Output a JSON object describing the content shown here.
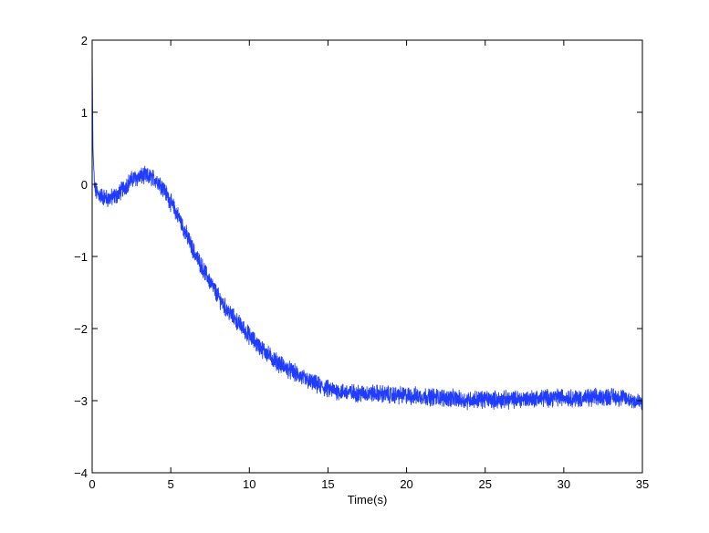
{
  "chart_data": {
    "type": "line",
    "title": "",
    "xlabel": "Time(s)",
    "ylabel": "",
    "xlim": [
      0,
      35
    ],
    "ylim": [
      -4,
      2
    ],
    "xticks": [
      0,
      5,
      10,
      15,
      20,
      25,
      30,
      35
    ],
    "yticks": [
      -4,
      -3,
      -2,
      -1,
      0,
      1,
      2
    ],
    "grid": false,
    "legend": "none",
    "colors": {
      "series": "#1f3cff",
      "axes": "#000000",
      "background": "#ffffff"
    },
    "series": [
      {
        "noisy": true,
        "x": [
          0,
          0.05,
          0.15,
          0.3,
          0.5,
          0.8,
          1.0,
          1.3,
          1.6,
          2.0,
          2.3,
          2.6,
          3.0,
          3.3,
          3.6,
          4.0,
          4.3,
          4.6,
          5.0,
          5.5,
          6.0,
          6.5,
          7.0,
          7.5,
          8.0,
          8.5,
          9.0,
          9.5,
          10.0,
          10.5,
          11.0,
          11.5,
          12.0,
          12.5,
          13.0,
          13.5,
          14.0,
          14.5,
          15.0,
          15.5,
          16.0,
          17.0,
          18.0,
          19.0,
          20.0,
          21.0,
          22.0,
          23.0,
          23.8,
          24.0,
          25.0,
          26.0,
          27.0,
          28.0,
          29.0,
          30.0,
          31.0,
          32.0,
          33.0,
          34.0,
          35.0
        ],
        "y": [
          1.85,
          0.5,
          -0.05,
          -0.12,
          -0.15,
          -0.18,
          -0.2,
          -0.18,
          -0.15,
          -0.05,
          0.02,
          0.08,
          0.1,
          0.12,
          0.1,
          0.08,
          0.02,
          -0.08,
          -0.25,
          -0.45,
          -0.7,
          -0.95,
          -1.15,
          -1.35,
          -1.55,
          -1.72,
          -1.85,
          -1.97,
          -2.1,
          -2.22,
          -2.32,
          -2.42,
          -2.5,
          -2.57,
          -2.63,
          -2.7,
          -2.75,
          -2.8,
          -2.84,
          -2.86,
          -2.88,
          -2.9,
          -2.9,
          -2.92,
          -2.93,
          -2.94,
          -2.95,
          -2.97,
          -3.0,
          -2.98,
          -2.98,
          -2.99,
          -2.98,
          -2.97,
          -2.96,
          -2.95,
          -2.97,
          -2.96,
          -2.94,
          -2.97,
          -3.03
        ]
      }
    ]
  }
}
